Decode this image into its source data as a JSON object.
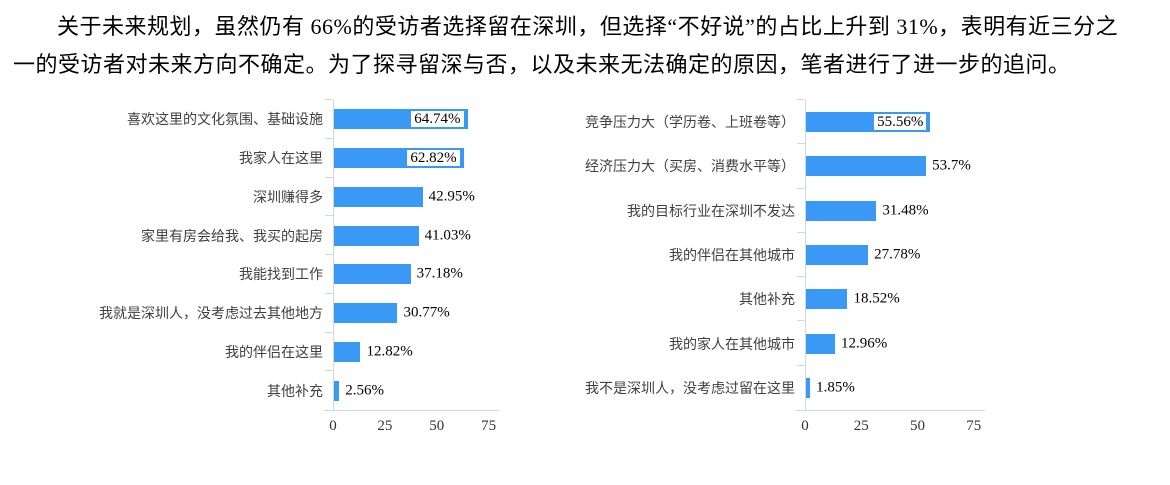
{
  "paragraph": {
    "text": "关于未来规划，虽然仍有 66%的受访者选择留在深圳，但选择“不好说”的占比上升到 31%，表明有近三分之一的受访者对未来方向不确定。为了探寻留深与否，以及未来无法确定的原因，笔者进行了进一步的追问。"
  },
  "colors": {
    "bar": "#3b99f6",
    "axis": "#cfd9e3",
    "category_text": "#404040",
    "value_text": "#000000",
    "tick_text": "#333333"
  },
  "chart_data": [
    {
      "type": "bar",
      "orientation": "horizontal",
      "categories": [
        "喜欢这里的文化氛围、基础设施",
        "我家人在这里",
        "深圳赚得多",
        "家里有房会给我、我买的起房",
        "我能找到工作",
        "我就是深圳人，没考虑过去其他地方",
        "我的伴侣在这里",
        "其他补充"
      ],
      "values": [
        64.74,
        62.82,
        42.95,
        41.03,
        37.18,
        30.77,
        12.82,
        2.56
      ],
      "labels": [
        "64.74%",
        "62.82%",
        "42.95%",
        "41.03%",
        "37.18%",
        "30.77%",
        "12.82%",
        "2.56%"
      ],
      "x_ticks": [
        0,
        25,
        50,
        75
      ],
      "xlim": [
        0,
        80
      ],
      "grid": false,
      "legend": false,
      "bar_color": "#3b99f6"
    },
    {
      "type": "bar",
      "orientation": "horizontal",
      "categories": [
        "竞争压力大（学历卷、上班卷等）",
        "经济压力大（买房、消费水平等）",
        "我的目标行业在深圳不发达",
        "我的伴侣在其他城市",
        "其他补充",
        "我的家人在其他城市",
        "我不是深圳人，没考虑过留在这里"
      ],
      "values": [
        55.56,
        53.7,
        31.48,
        27.78,
        18.52,
        12.96,
        1.85
      ],
      "labels": [
        "55.56%",
        "53.7%",
        "31.48%",
        "27.78%",
        "18.52%",
        "12.96%",
        "1.85%"
      ],
      "x_ticks": [
        0,
        25,
        50,
        75
      ],
      "xlim": [
        0,
        80
      ],
      "grid": false,
      "legend": false,
      "bar_color": "#3b99f6"
    }
  ]
}
